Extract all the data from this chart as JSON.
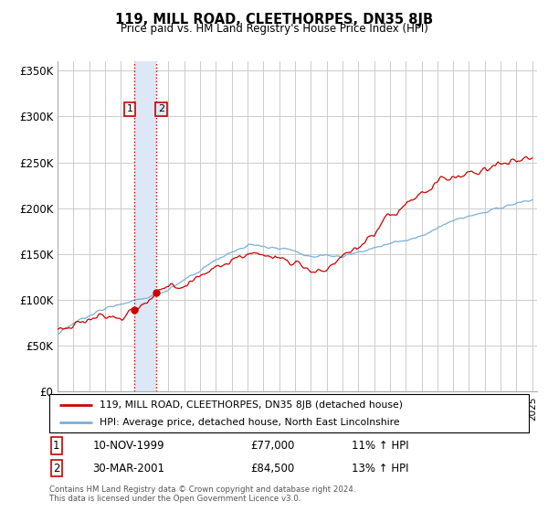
{
  "title": "119, MILL ROAD, CLEETHORPES, DN35 8JB",
  "subtitle": "Price paid vs. HM Land Registry's House Price Index (HPI)",
  "ylim": [
    0,
    360000
  ],
  "yticks": [
    0,
    50000,
    100000,
    150000,
    200000,
    250000,
    300000,
    350000
  ],
  "ytick_labels": [
    "£0",
    "£50K",
    "£100K",
    "£150K",
    "£200K",
    "£250K",
    "£300K",
    "£350K"
  ],
  "hpi_color": "#7ab0d8",
  "price_color": "#cc0000",
  "vline_color": "#cc0000",
  "shade_color": "#dce8f5",
  "sale1_year": 1999.86,
  "sale2_year": 2001.24,
  "sale1_date": "10-NOV-1999",
  "sale1_amount": "£77,000",
  "sale1_hpi": "11% ↑ HPI",
  "sale2_date": "30-MAR-2001",
  "sale2_amount": "£84,500",
  "sale2_hpi": "13% ↑ HPI",
  "legend_line1": "119, MILL ROAD, CLEETHORPES, DN35 8JB (detached house)",
  "legend_line2": "HPI: Average price, detached house, North East Lincolnshire",
  "footnote": "Contains HM Land Registry data © Crown copyright and database right 2024.\nThis data is licensed under the Open Government Licence v3.0.",
  "background_color": "#ffffff",
  "grid_color": "#cccccc"
}
